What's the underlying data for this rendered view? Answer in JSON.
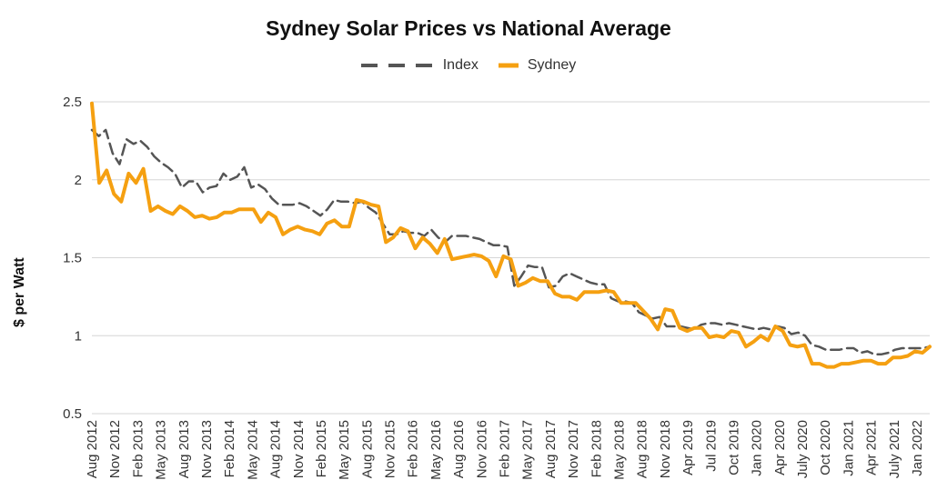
{
  "chart_data": {
    "type": "line",
    "title": "Sydney Solar Prices vs National Average",
    "xlabel": "",
    "ylabel": "$ per Watt",
    "ylim": [
      0.5,
      2.5
    ],
    "yticks": [
      "2.5",
      "2",
      "1.5",
      "1",
      "0.5"
    ],
    "ytick_values": [
      2.5,
      2,
      1.5,
      1,
      0.5
    ],
    "grid": "horizontal",
    "legend_position": "top-center",
    "x_start": "Aug 2012",
    "x_end": "Mar 2022",
    "x_ticks": [
      "Aug 2012",
      "Nov 2012",
      "Feb 2013",
      "May 2013",
      "Aug 2013",
      "Nov 2013",
      "Feb 2014",
      "May 2014",
      "Aug 2014",
      "Nov 2014",
      "Feb 2015",
      "May 2015",
      "Aug 2015",
      "Nov 2015",
      "Feb 2016",
      "May 2016",
      "Aug 2016",
      "Nov 2016",
      "Feb 2017",
      "May 2017",
      "Aug 2017",
      "Nov 2017",
      "Feb 2018",
      "May 2018",
      "Aug 2018",
      "Nov 2018",
      "Apr 2019",
      "Jul 2019",
      "Oct 2019",
      "Jan 2020",
      "Apr 2020",
      "July 2020",
      "Oct 2020",
      "Jan 2021",
      "Apr 2021",
      "July 2021",
      "Jan 2022"
    ],
    "series": [
      {
        "name": "Index",
        "color": "#555555",
        "style": "dashed",
        "values": [
          2.32,
          2.28,
          2.32,
          2.17,
          2.1,
          2.26,
          2.23,
          2.25,
          2.21,
          2.15,
          2.11,
          2.08,
          2.04,
          1.95,
          1.99,
          1.99,
          1.92,
          1.95,
          1.96,
          2.04,
          2.0,
          2.02,
          2.08,
          1.95,
          1.97,
          1.94,
          1.88,
          1.84,
          1.84,
          1.84,
          1.85,
          1.83,
          1.8,
          1.77,
          1.81,
          1.87,
          1.86,
          1.86,
          1.85,
          1.86,
          1.82,
          1.79,
          1.72,
          1.65,
          1.65,
          1.67,
          1.66,
          1.66,
          1.64,
          1.68,
          1.63,
          1.6,
          1.64,
          1.64,
          1.64,
          1.63,
          1.62,
          1.6,
          1.58,
          1.58,
          1.57,
          1.32,
          1.38,
          1.45,
          1.44,
          1.44,
          1.31,
          1.32,
          1.38,
          1.4,
          1.38,
          1.36,
          1.34,
          1.33,
          1.33,
          1.24,
          1.22,
          1.22,
          1.21,
          1.15,
          1.13,
          1.11,
          1.12,
          1.06,
          1.06,
          1.06,
          1.05,
          1.04,
          1.07,
          1.08,
          1.08,
          1.07,
          1.08,
          1.07,
          1.06,
          1.05,
          1.04,
          1.05,
          1.04,
          1.06,
          1.05,
          1.01,
          1.02,
          1.0,
          0.94,
          0.93,
          0.91,
          0.91,
          0.91,
          0.92,
          0.92,
          0.89,
          0.9,
          0.88,
          0.88,
          0.89,
          0.91,
          0.92,
          0.92,
          0.92,
          0.92,
          0.93
        ]
      },
      {
        "name": "Sydney",
        "color": "#f5a011",
        "style": "solid",
        "values": [
          2.49,
          1.98,
          2.06,
          1.91,
          1.86,
          2.04,
          1.98,
          2.07,
          1.8,
          1.83,
          1.8,
          1.78,
          1.83,
          1.8,
          1.76,
          1.77,
          1.75,
          1.76,
          1.79,
          1.79,
          1.81,
          1.81,
          1.81,
          1.73,
          1.79,
          1.76,
          1.65,
          1.68,
          1.7,
          1.68,
          1.67,
          1.65,
          1.72,
          1.74,
          1.7,
          1.7,
          1.87,
          1.86,
          1.84,
          1.83,
          1.6,
          1.63,
          1.69,
          1.67,
          1.56,
          1.63,
          1.59,
          1.53,
          1.62,
          1.49,
          1.5,
          1.51,
          1.52,
          1.51,
          1.48,
          1.38,
          1.51,
          1.49,
          1.32,
          1.34,
          1.37,
          1.35,
          1.35,
          1.27,
          1.25,
          1.25,
          1.23,
          1.28,
          1.28,
          1.28,
          1.29,
          1.28,
          1.21,
          1.21,
          1.21,
          1.16,
          1.11,
          1.04,
          1.17,
          1.16,
          1.05,
          1.03,
          1.05,
          1.05,
          0.99,
          1.0,
          0.99,
          1.03,
          1.02,
          0.93,
          0.96,
          1.0,
          0.97,
          1.06,
          1.03,
          0.94,
          0.93,
          0.94,
          0.82,
          0.82,
          0.8,
          0.8,
          0.82,
          0.82,
          0.83,
          0.84,
          0.84,
          0.82,
          0.82,
          0.86,
          0.86,
          0.87,
          0.9,
          0.89,
          0.93
        ]
      }
    ]
  }
}
